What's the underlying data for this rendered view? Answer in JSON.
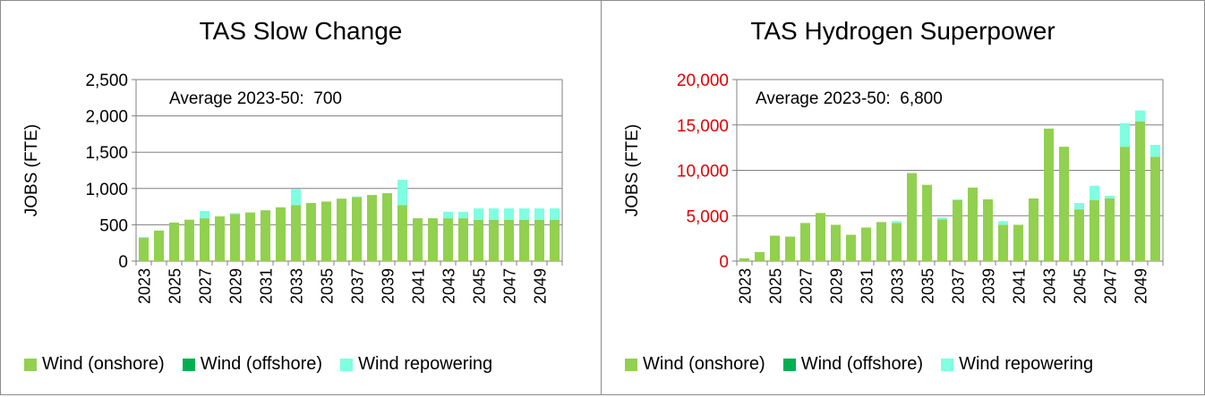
{
  "colors": {
    "onshore": "#92D050",
    "offshore": "#00B050",
    "repowering": "#7FFFE0",
    "grid": "#808080",
    "axis_red": "#E00000"
  },
  "legend": {
    "onshore": "Wind (onshore)",
    "offshore": "Wind (offshore)",
    "repowering": "Wind repowering"
  },
  "chart_data": [
    {
      "type": "bar",
      "stacked": true,
      "title": "TAS Slow Change",
      "ylabel": "JOBS (FTE)",
      "annotation": "Average 2023-50:  700",
      "ylim": [
        0,
        2500
      ],
      "yticks": [
        0,
        500,
        1000,
        1500,
        2000,
        2500
      ],
      "ytick_labels": [
        "0",
        "500",
        "1,000",
        "1,500",
        "2,000",
        "2,500"
      ],
      "categories": [
        "2023",
        "2024",
        "2025",
        "2026",
        "2027",
        "2028",
        "2029",
        "2030",
        "2031",
        "2032",
        "2033",
        "2034",
        "2035",
        "2036",
        "2037",
        "2038",
        "2039",
        "2040",
        "2041",
        "2042",
        "2043",
        "2044",
        "2045",
        "2046",
        "2047",
        "2048",
        "2049",
        "2050"
      ],
      "xtick_labels": [
        "2023",
        "",
        "2025",
        "",
        "2027",
        "",
        "2029",
        "",
        "2031",
        "",
        "2033",
        "",
        "2035",
        "",
        "2037",
        "",
        "2039",
        "",
        "2041",
        "",
        "2043",
        "",
        "2045",
        "",
        "2047",
        "",
        "2049",
        ""
      ],
      "series": [
        {
          "name": "Wind (onshore)",
          "values": [
            320,
            420,
            530,
            570,
            590,
            615,
            650,
            670,
            700,
            740,
            770,
            800,
            820,
            860,
            880,
            910,
            935,
            770,
            590,
            590,
            590,
            590,
            570,
            570,
            570,
            570,
            570,
            570
          ]
        },
        {
          "name": "Wind (offshore)",
          "values": [
            0,
            0,
            0,
            0,
            0,
            0,
            0,
            0,
            0,
            0,
            0,
            0,
            0,
            0,
            0,
            0,
            0,
            0,
            0,
            0,
            0,
            0,
            0,
            0,
            0,
            0,
            0,
            0
          ]
        },
        {
          "name": "Wind repowering",
          "values": [
            10,
            0,
            0,
            0,
            100,
            0,
            10,
            0,
            0,
            0,
            220,
            0,
            0,
            0,
            10,
            0,
            0,
            350,
            0,
            0,
            90,
            90,
            155,
            155,
            155,
            155,
            155,
            155
          ]
        }
      ]
    },
    {
      "type": "bar",
      "stacked": true,
      "title": "TAS Hydrogen Superpower",
      "ylabel": "JOBS (FTE)",
      "annotation": "Average 2023-50:  6,800",
      "ylim": [
        0,
        20000
      ],
      "yticks": [
        0,
        5000,
        10000,
        15000,
        20000
      ],
      "ytick_labels": [
        "0",
        "5,000",
        "10,000",
        "15,000",
        "20,000"
      ],
      "categories": [
        "2023",
        "2024",
        "2025",
        "2026",
        "2027",
        "2028",
        "2029",
        "2030",
        "2031",
        "2032",
        "2033",
        "2034",
        "2035",
        "2036",
        "2037",
        "2038",
        "2039",
        "2040",
        "2041",
        "2042",
        "2043",
        "2044",
        "2045",
        "2046",
        "2047",
        "2048",
        "2049",
        "2050"
      ],
      "xtick_labels": [
        "2023",
        "",
        "2025",
        "",
        "2027",
        "",
        "2029",
        "",
        "2031",
        "",
        "2033",
        "",
        "2035",
        "",
        "2037",
        "",
        "2039",
        "",
        "2041",
        "",
        "2043",
        "",
        "2045",
        "",
        "2047",
        "",
        "2049",
        ""
      ],
      "series": [
        {
          "name": "Wind (onshore)",
          "values": [
            300,
            1000,
            2800,
            2700,
            4200,
            5300,
            4000,
            2900,
            3700,
            4300,
            4200,
            9700,
            8400,
            4600,
            6700,
            8100,
            6800,
            4000,
            4000,
            6900,
            14600,
            12600,
            5700,
            6700,
            6900,
            12600,
            15400,
            11500
          ]
        },
        {
          "name": "Wind (offshore)",
          "values": [
            0,
            0,
            0,
            0,
            0,
            0,
            0,
            0,
            0,
            0,
            0,
            0,
            0,
            0,
            0,
            0,
            0,
            0,
            0,
            0,
            0,
            0,
            0,
            0,
            0,
            0,
            0,
            0
          ]
        },
        {
          "name": "Wind repowering",
          "values": [
            0,
            0,
            0,
            0,
            0,
            0,
            0,
            0,
            0,
            0,
            200,
            0,
            0,
            200,
            100,
            0,
            0,
            400,
            0,
            0,
            0,
            0,
            700,
            1600,
            300,
            2600,
            1200,
            1300
          ]
        }
      ]
    }
  ]
}
